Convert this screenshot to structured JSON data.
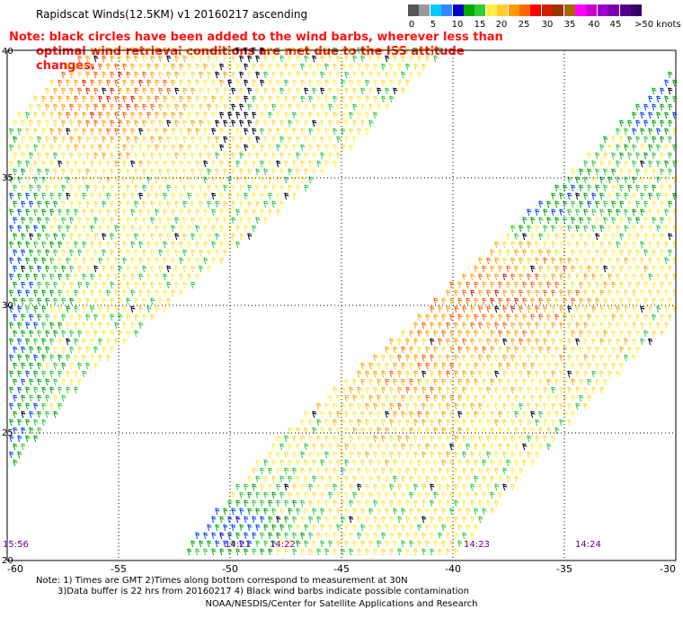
{
  "title": "Rapidscat Winds(12.5KM) v1 20160217 ascending",
  "note": {
    "line1": "Note: black circles have been added to the wind barbs, wherever less than",
    "line2": "optimal wind retrieval conditions are met due to the ISS attitude changes."
  },
  "legend": {
    "labels": [
      "0",
      "5",
      "10",
      "15",
      "20",
      "25",
      "30",
      "35",
      "40",
      "45",
      ">50 knots"
    ],
    "colors": [
      "#555555",
      "#999999",
      "#00ccff",
      "#3388ff",
      "#0000cc",
      "#00aa00",
      "#33cc33",
      "#ffee44",
      "#ffcc33",
      "#ff9900",
      "#ff6600",
      "#ff0000",
      "#cc2200",
      "#993300",
      "#aa6600",
      "#ff00ff",
      "#cc00cc",
      "#9900cc",
      "#7700aa",
      "#550088",
      "#330066"
    ]
  },
  "map": {
    "lat_labels": [
      "40",
      "35",
      "30",
      "25",
      "20"
    ],
    "lon_labels": [
      "-60",
      "-55",
      "-50",
      "-45",
      "-40",
      "-35",
      "-30"
    ],
    "pass_times": [
      "15:56",
      "14:21",
      "14:22",
      "14:23",
      "14:24"
    ]
  },
  "footnote": {
    "line1": "Note: 1) Times are GMT 2)Times along bottom correspond to measurement at 30N",
    "line2": "3)Data buffer is 22 hrs from 20160217 4) Black wind barbs indicate possible contamination"
  },
  "credit": "NOAA/NESDIS/Center for Satellite Applications and Research"
}
